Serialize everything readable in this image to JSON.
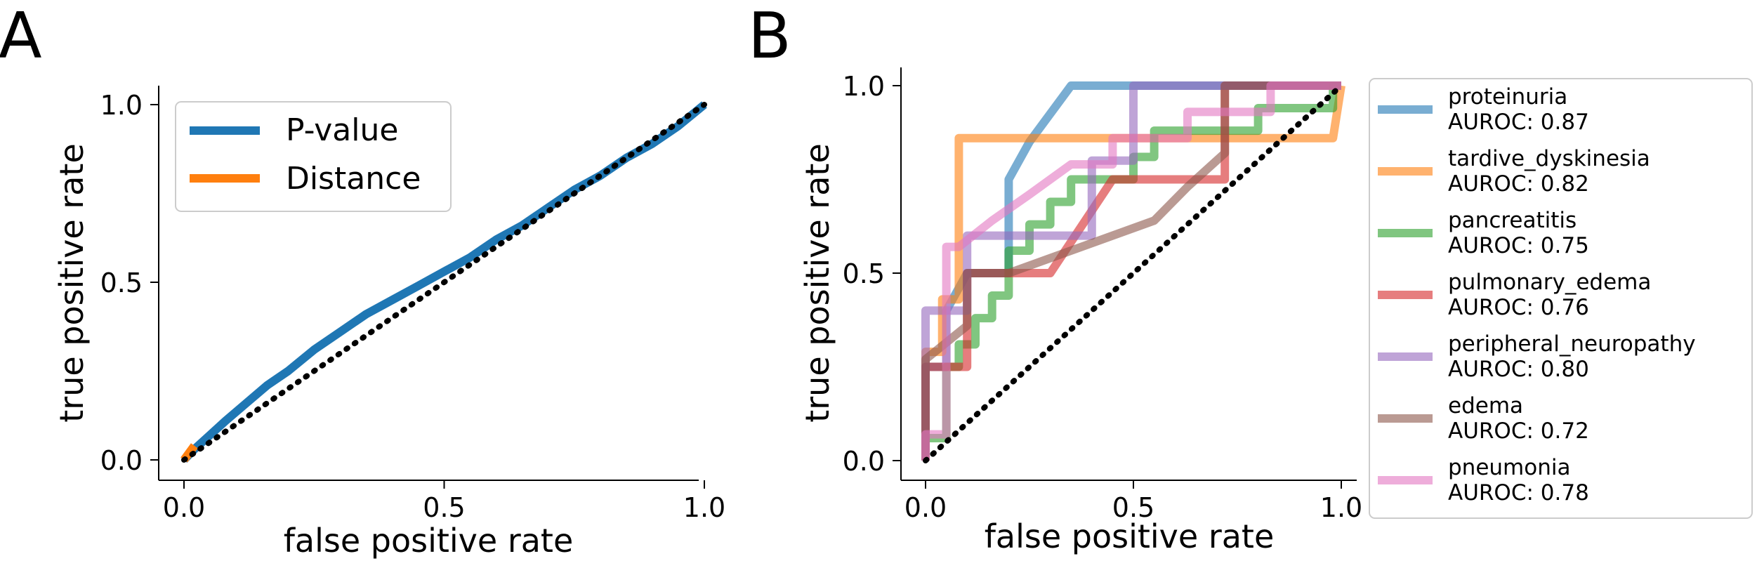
{
  "panels": [
    {
      "letter": "A"
    },
    {
      "letter": "B"
    }
  ],
  "chart_data": [
    {
      "type": "line",
      "panel": "A",
      "xlabel": "false positive rate",
      "ylabel": "true positive rate",
      "xlim": [
        -0.03,
        1.05
      ],
      "ylim": [
        -0.05,
        1.05
      ],
      "xticks": [
        0.0,
        0.5,
        1.0
      ],
      "yticks": [
        0.0,
        0.5,
        1.0
      ],
      "tick_labels_x": [
        "0.0",
        "0.5",
        "1.0"
      ],
      "tick_labels_y": [
        "0.0",
        "0.5",
        "1.0"
      ],
      "grid": false,
      "legend_position": "upper-left",
      "diagonal": {
        "style": "dotted",
        "color": "#000000",
        "x": [
          0,
          1
        ],
        "y": [
          0,
          1
        ]
      },
      "series": [
        {
          "name": "P-value",
          "color": "#1f77b4",
          "x": [
            0.0,
            0.02,
            0.05,
            0.08,
            0.12,
            0.16,
            0.2,
            0.25,
            0.3,
            0.35,
            0.4,
            0.45,
            0.5,
            0.55,
            0.6,
            0.65,
            0.7,
            0.75,
            0.8,
            0.85,
            0.9,
            0.95,
            1.0
          ],
          "y": [
            0.0,
            0.03,
            0.07,
            0.11,
            0.16,
            0.21,
            0.25,
            0.31,
            0.36,
            0.41,
            0.45,
            0.49,
            0.53,
            0.57,
            0.62,
            0.66,
            0.71,
            0.76,
            0.8,
            0.85,
            0.89,
            0.94,
            1.0
          ]
        },
        {
          "name": "Distance",
          "color": "#ff7f0e",
          "x": [
            0.0,
            0.01,
            0.02
          ],
          "y": [
            0.0,
            0.02,
            0.04
          ]
        }
      ]
    },
    {
      "type": "line",
      "panel": "B",
      "xlabel": "false positive rate",
      "ylabel": "true positive rate",
      "xlim": [
        -0.05,
        1.05
      ],
      "ylim": [
        -0.05,
        1.05
      ],
      "xticks": [
        0.0,
        0.5,
        1.0
      ],
      "yticks": [
        0.0,
        0.5,
        1.0
      ],
      "tick_labels_x": [
        "0.0",
        "0.5",
        "1.0"
      ],
      "tick_labels_y": [
        "0.0",
        "0.5",
        "1.0"
      ],
      "grid": false,
      "legend_position": "outside-right",
      "diagonal": {
        "style": "dotted",
        "color": "#000000",
        "x": [
          0,
          1
        ],
        "y": [
          0,
          1
        ]
      },
      "series": [
        {
          "name": "proteinuria",
          "auroc_label": "AUROC: 0.87",
          "color": "#1f77b4",
          "x": [
            0.0,
            0.0,
            0.05,
            0.05,
            0.1,
            0.1,
            0.2,
            0.2,
            0.25,
            0.35,
            1.0
          ],
          "y": [
            0.0,
            0.25,
            0.25,
            0.4,
            0.5,
            0.5,
            0.5,
            0.75,
            0.85,
            1.0,
            1.0
          ]
        },
        {
          "name": "tardive_dyskinesia",
          "auroc_label": "AUROC: 0.82",
          "color": "#ff7f0e",
          "x": [
            0.0,
            0.0,
            0.04,
            0.04,
            0.08,
            0.08,
            0.3,
            0.3,
            0.8,
            0.8,
            0.98,
            0.98,
            1.0
          ],
          "y": [
            0.0,
            0.29,
            0.29,
            0.43,
            0.43,
            0.86,
            0.86,
            0.86,
            0.86,
            0.86,
            0.86,
            0.86,
            1.0
          ]
        },
        {
          "name": "pancreatitis",
          "auroc_label": "AUROC: 0.75",
          "color": "#2ca02c",
          "x": [
            0.0,
            0.0,
            0.05,
            0.05,
            0.08,
            0.08,
            0.12,
            0.12,
            0.16,
            0.16,
            0.2,
            0.2,
            0.25,
            0.25,
            0.3,
            0.3,
            0.35,
            0.35,
            0.5,
            0.5,
            0.55,
            0.55,
            0.8,
            0.8,
            0.98,
            0.98,
            1.0
          ],
          "y": [
            0.0,
            0.06,
            0.06,
            0.25,
            0.25,
            0.31,
            0.31,
            0.38,
            0.38,
            0.44,
            0.44,
            0.56,
            0.56,
            0.63,
            0.63,
            0.69,
            0.69,
            0.75,
            0.75,
            0.81,
            0.81,
            0.88,
            0.88,
            0.94,
            0.94,
            1.0,
            1.0
          ]
        },
        {
          "name": "pulmonary_edema",
          "auroc_label": "AUROC: 0.76",
          "color": "#d62728",
          "x": [
            0.0,
            0.0,
            0.1,
            0.1,
            0.15,
            0.3,
            0.45,
            0.45,
            0.55,
            0.55,
            0.72,
            0.72,
            1.0
          ],
          "y": [
            0.0,
            0.25,
            0.25,
            0.5,
            0.5,
            0.5,
            0.75,
            0.75,
            0.75,
            0.75,
            0.75,
            1.0,
            1.0
          ]
        },
        {
          "name": "peripheral_neuropathy",
          "auroc_label": "AUROC: 0.80",
          "color": "#9467bd",
          "x": [
            0.0,
            0.0,
            0.05,
            0.05,
            0.1,
            0.1,
            0.2,
            0.4,
            0.4,
            0.5,
            0.5,
            1.0
          ],
          "y": [
            0.0,
            0.4,
            0.4,
            0.4,
            0.4,
            0.6,
            0.6,
            0.6,
            0.8,
            0.8,
            1.0,
            1.0
          ]
        },
        {
          "name": "edema",
          "auroc_label": "AUROC: 0.72",
          "color": "#8c564b",
          "x": [
            0.0,
            0.0,
            0.1,
            0.1,
            0.2,
            0.55,
            0.55,
            0.63,
            0.63,
            0.72,
            0.72,
            1.0
          ],
          "y": [
            0.0,
            0.27,
            0.36,
            0.5,
            0.5,
            0.64,
            0.64,
            0.73,
            0.73,
            0.82,
            1.0,
            1.0
          ]
        },
        {
          "name": "pneumonia",
          "auroc_label": "AUROC: 0.78",
          "color": "#e377c2",
          "x": [
            0.0,
            0.0,
            0.05,
            0.05,
            0.08,
            0.08,
            0.16,
            0.25,
            0.35,
            0.45,
            0.45,
            0.63,
            0.63,
            0.83,
            0.83,
            1.0
          ],
          "y": [
            0.0,
            0.07,
            0.07,
            0.57,
            0.57,
            0.57,
            0.64,
            0.71,
            0.79,
            0.79,
            0.86,
            0.86,
            0.93,
            0.93,
            1.0,
            1.0
          ]
        }
      ]
    }
  ]
}
